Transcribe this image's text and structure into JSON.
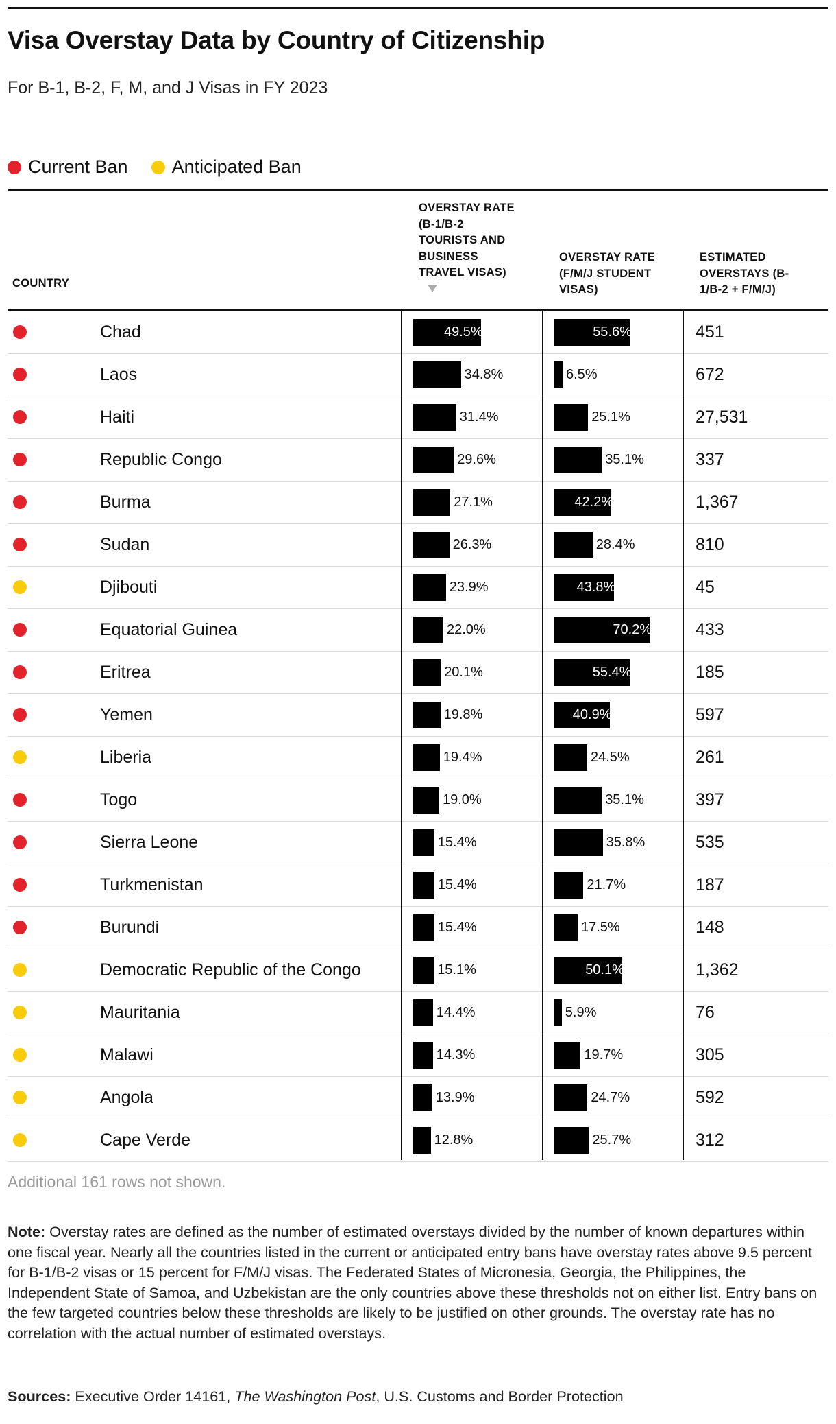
{
  "title": "Visa Overstay Data by Country of Citizenship",
  "subtitle": "For B-1, B-2, F, M, and J Visas in FY 2023",
  "legend": [
    {
      "label": "Current Ban",
      "color": "#e3232b"
    },
    {
      "label": "Anticipated Ban",
      "color": "#f8cc0b"
    }
  ],
  "headers": {
    "country": "COUNTRY",
    "tourist": [
      "OVERSTAY RATE",
      "(B-1/B-2",
      "TOURISTS AND",
      "BUSINESS",
      "TRAVEL VISAS)"
    ],
    "student": [
      "OVERSTAY RATE",
      "(F/M/J STUDENT",
      "VISAS)"
    ],
    "estimated": [
      "ESTIMATED",
      "OVERSTAYS (B-",
      "1/B-2 + F/M/J)"
    ]
  },
  "chart_data": {
    "type": "table",
    "columns": [
      "Country",
      "Overstay Rate (B-1/B-2 Tourists and Business Travel Visas)",
      "Overstay Rate (F/M/J Student Visas)",
      "Estimated Overstays (B-1/B-2 + F/M/J)"
    ],
    "rows": [
      {
        "status": "current",
        "country": "Chad",
        "tourist": 49.5,
        "tourist_label": "49.5%",
        "student": 55.6,
        "student_label": "55.6%",
        "estimated": "451"
      },
      {
        "status": "current",
        "country": "Laos",
        "tourist": 34.8,
        "tourist_label": "34.8%",
        "student": 6.5,
        "student_label": "6.5%",
        "estimated": "672"
      },
      {
        "status": "current",
        "country": "Haiti",
        "tourist": 31.4,
        "tourist_label": "31.4%",
        "student": 25.1,
        "student_label": "25.1%",
        "estimated": "27,531"
      },
      {
        "status": "current",
        "country": "Republic Congo",
        "tourist": 29.6,
        "tourist_label": "29.6%",
        "student": 35.1,
        "student_label": "35.1%",
        "estimated": "337"
      },
      {
        "status": "current",
        "country": "Burma",
        "tourist": 27.1,
        "tourist_label": "27.1%",
        "student": 42.2,
        "student_label": "42.2%",
        "estimated": "1,367"
      },
      {
        "status": "current",
        "country": "Sudan",
        "tourist": 26.3,
        "tourist_label": "26.3%",
        "student": 28.4,
        "student_label": "28.4%",
        "estimated": "810"
      },
      {
        "status": "anticipated",
        "country": "Djibouti",
        "tourist": 23.9,
        "tourist_label": "23.9%",
        "student": 43.8,
        "student_label": "43.8%",
        "estimated": "45"
      },
      {
        "status": "current",
        "country": "Equatorial Guinea",
        "tourist": 22.0,
        "tourist_label": "22.0%",
        "student": 70.2,
        "student_label": "70.2%",
        "estimated": "433"
      },
      {
        "status": "current",
        "country": "Eritrea",
        "tourist": 20.1,
        "tourist_label": "20.1%",
        "student": 55.4,
        "student_label": "55.4%",
        "estimated": "185"
      },
      {
        "status": "current",
        "country": "Yemen",
        "tourist": 19.8,
        "tourist_label": "19.8%",
        "student": 40.9,
        "student_label": "40.9%",
        "estimated": "597"
      },
      {
        "status": "anticipated",
        "country": "Liberia",
        "tourist": 19.4,
        "tourist_label": "19.4%",
        "student": 24.5,
        "student_label": "24.5%",
        "estimated": "261"
      },
      {
        "status": "current",
        "country": "Togo",
        "tourist": 19.0,
        "tourist_label": "19.0%",
        "student": 35.1,
        "student_label": "35.1%",
        "estimated": "397"
      },
      {
        "status": "current",
        "country": "Sierra Leone",
        "tourist": 15.4,
        "tourist_label": "15.4%",
        "student": 35.8,
        "student_label": "35.8%",
        "estimated": "535"
      },
      {
        "status": "current",
        "country": "Turkmenistan",
        "tourist": 15.4,
        "tourist_label": "15.4%",
        "student": 21.7,
        "student_label": "21.7%",
        "estimated": "187"
      },
      {
        "status": "current",
        "country": "Burundi",
        "tourist": 15.4,
        "tourist_label": "15.4%",
        "student": 17.5,
        "student_label": "17.5%",
        "estimated": "148"
      },
      {
        "status": "anticipated",
        "country": "Democratic Republic of the Congo",
        "tourist": 15.1,
        "tourist_label": "15.1%",
        "student": 50.1,
        "student_label": "50.1%",
        "estimated": "1,362"
      },
      {
        "status": "anticipated",
        "country": "Mauritania",
        "tourist": 14.4,
        "tourist_label": "14.4%",
        "student": 5.9,
        "student_label": "5.9%",
        "estimated": "76"
      },
      {
        "status": "anticipated",
        "country": "Malawi",
        "tourist": 14.3,
        "tourist_label": "14.3%",
        "student": 19.7,
        "student_label": "19.7%",
        "estimated": "305"
      },
      {
        "status": "anticipated",
        "country": "Angola",
        "tourist": 13.9,
        "tourist_label": "13.9%",
        "student": 24.7,
        "student_label": "24.7%",
        "estimated": "592"
      },
      {
        "status": "anticipated",
        "country": "Cape Verde",
        "tourist": 12.8,
        "tourist_label": "12.8%",
        "student": 25.7,
        "student_label": "25.7%",
        "estimated": "312"
      }
    ]
  },
  "more_rows": "Additional 161 rows not shown.",
  "note": {
    "label": "Note:",
    "text": " Overstay rates are defined as the number of estimated overstays divided by the number of known departures within one fiscal year. Nearly all the countries listed in the current or anticipated entry bans have overstay rates above 9.5 percent for B-1/B-2 visas or 15 percent for F/M/J visas. The Federated States of Micronesia, Georgia, the Philippines, the Independent State of Samoa, and Uzbekistan are the only countries above these thresholds not on either list. Entry bans on the few targeted countries below these thresholds are likely to be justified on other grounds. The overstay rate has no correlation with the actual number of estimated overstays."
  },
  "sources": {
    "label": "Sources:",
    "part1": " Executive Order 14161, ",
    "italic": "The Washington Post",
    "part2": ", U.S. Customs and Border Protection"
  }
}
